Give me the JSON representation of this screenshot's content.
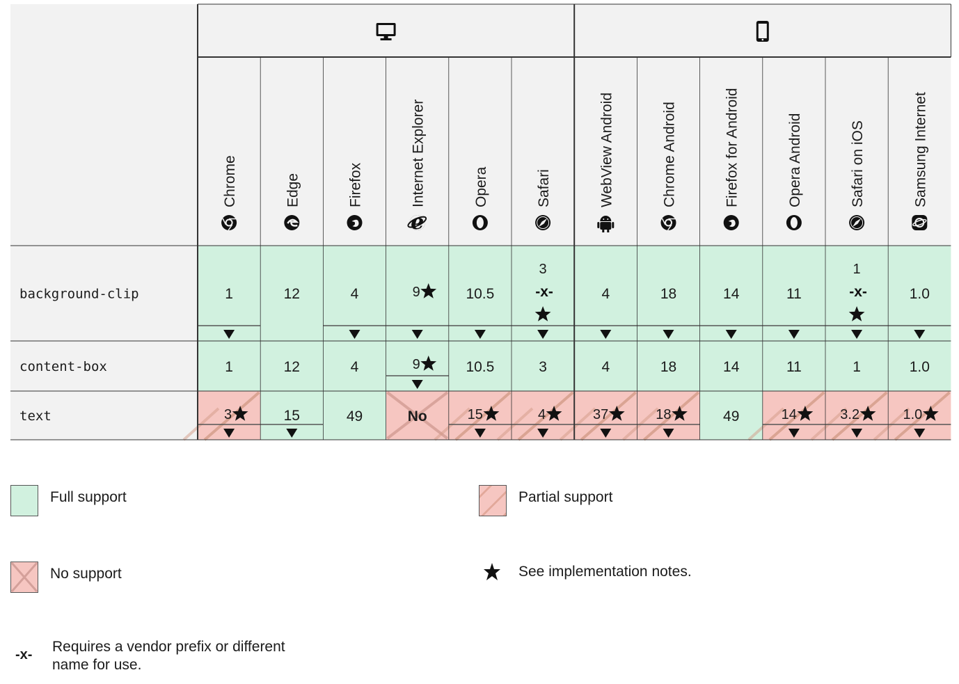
{
  "colors": {
    "full": "#d1f1df",
    "partial": "#f6c6c1",
    "header": "#f2f2f2",
    "hatch": "#d4a892",
    "grid": "#333333"
  },
  "platforms": {
    "desktop_icon": "desktop-icon",
    "mobile_icon": "mobile-phone-icon"
  },
  "browsers": [
    {
      "name": "Chrome",
      "icon": "chrome-icon"
    },
    {
      "name": "Edge",
      "icon": "edge-icon"
    },
    {
      "name": "Firefox",
      "icon": "firefox-icon"
    },
    {
      "name": "Internet Explorer",
      "icon": "ie-icon"
    },
    {
      "name": "Opera",
      "icon": "opera-icon"
    },
    {
      "name": "Safari",
      "icon": "safari-icon"
    },
    {
      "name": "WebView Android",
      "icon": "android-icon"
    },
    {
      "name": "Chrome Android",
      "icon": "chrome-icon"
    },
    {
      "name": "Firefox for Android",
      "icon": "firefox-icon"
    },
    {
      "name": "Opera Android",
      "icon": "opera-icon"
    },
    {
      "name": "Safari on iOS",
      "icon": "safari-icon"
    },
    {
      "name": "Samsung Internet",
      "icon": "samsung-icon"
    }
  ],
  "features": [
    {
      "name": "background-clip",
      "cells": [
        {
          "v": "1",
          "s": "full",
          "arrow": true
        },
        {
          "v": "12",
          "s": "full",
          "arrow": false
        },
        {
          "v": "4",
          "s": "full",
          "arrow": true
        },
        {
          "v": "9",
          "s": "full",
          "arrow": true,
          "note": true
        },
        {
          "v": "10.5",
          "s": "full",
          "arrow": true
        },
        {
          "v": "3",
          "s": "full",
          "arrow": true,
          "prefix": true,
          "note": true
        },
        {
          "v": "4",
          "s": "full",
          "arrow": true
        },
        {
          "v": "18",
          "s": "full",
          "arrow": true
        },
        {
          "v": "14",
          "s": "full",
          "arrow": true
        },
        {
          "v": "11",
          "s": "full",
          "arrow": true
        },
        {
          "v": "1",
          "s": "full",
          "arrow": true,
          "prefix": true,
          "note": true
        },
        {
          "v": "1.0",
          "s": "full",
          "arrow": true
        }
      ]
    },
    {
      "name": "content-box",
      "cells": [
        {
          "v": "1",
          "s": "full"
        },
        {
          "v": "12",
          "s": "full"
        },
        {
          "v": "4",
          "s": "full"
        },
        {
          "v": "9",
          "s": "full",
          "arrow": true,
          "note": true
        },
        {
          "v": "10.5",
          "s": "full"
        },
        {
          "v": "3",
          "s": "full"
        },
        {
          "v": "4",
          "s": "full"
        },
        {
          "v": "18",
          "s": "full"
        },
        {
          "v": "14",
          "s": "full"
        },
        {
          "v": "11",
          "s": "full"
        },
        {
          "v": "1",
          "s": "full"
        },
        {
          "v": "1.0",
          "s": "full"
        }
      ]
    },
    {
      "name": "text",
      "cells": [
        {
          "v": "3",
          "s": "partial",
          "arrow": true,
          "note": true
        },
        {
          "v": "15",
          "s": "full",
          "arrow": true
        },
        {
          "v": "49",
          "s": "full"
        },
        {
          "v": "No",
          "s": "none"
        },
        {
          "v": "15",
          "s": "partial",
          "arrow": true,
          "note": true
        },
        {
          "v": "4",
          "s": "partial",
          "arrow": true,
          "note": true
        },
        {
          "v": "37",
          "s": "partial",
          "arrow": true,
          "note": true
        },
        {
          "v": "18",
          "s": "partial",
          "arrow": true,
          "note": true
        },
        {
          "v": "49",
          "s": "full"
        },
        {
          "v": "14",
          "s": "partial",
          "arrow": true,
          "note": true
        },
        {
          "v": "3.2",
          "s": "partial",
          "arrow": true,
          "note": true
        },
        {
          "v": "1.0",
          "s": "partial",
          "arrow": true,
          "note": true
        }
      ]
    }
  ],
  "prefix_mark": "-x-",
  "legend": {
    "full": "Full support",
    "partial": "Partial support",
    "none": "No support",
    "notes": "See implementation notes.",
    "prefix_line1": "Requires a vendor prefix or different",
    "prefix_line2": "name for use.",
    "prefix_symbol": "-x-"
  }
}
